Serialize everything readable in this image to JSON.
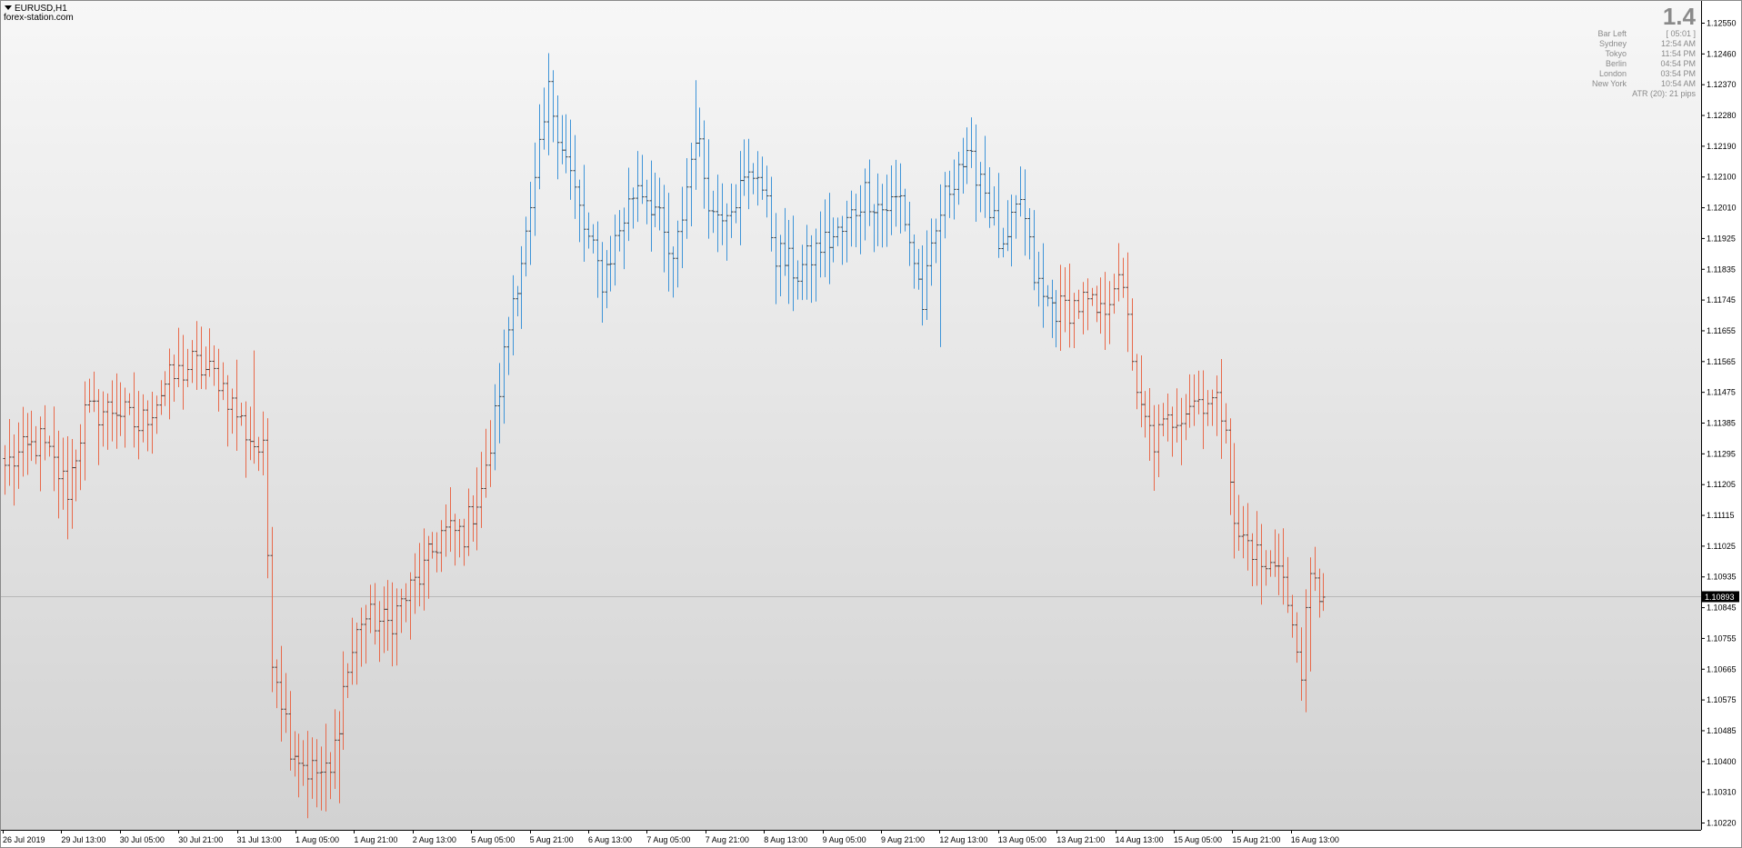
{
  "window": {
    "symbol": "EURUSD,H1",
    "site": "forex-station.com"
  },
  "info_panel": {
    "big_value": "1.4",
    "rows": [
      {
        "label": "Bar Left",
        "value": "[ 05:01 ]"
      },
      {
        "label": "Sydney",
        "value": "12:54 AM"
      },
      {
        "label": "Tokyo",
        "value": "11:54 PM"
      },
      {
        "label": "Berlin",
        "value": "04:54 PM"
      },
      {
        "label": "London",
        "value": "03:54 PM"
      },
      {
        "label": "New York",
        "value": "10:54 AM"
      }
    ],
    "atr": "ATR (20): 21 pips"
  },
  "colors": {
    "background_top": "#f7f7f7",
    "background_bottom": "#d2d2d2",
    "bear_bar": "#e8694a",
    "bull_bar": "#3e94d8",
    "price_line": "#b8b8b8",
    "current_price_box": "#000000",
    "current_price_text": "#ffffff",
    "axis_line": "#000000",
    "info_text": "#8a8a8a"
  },
  "chart_data": {
    "type": "ohlc",
    "title": "EURUSD,H1",
    "xlabel": "",
    "ylabel": "",
    "ylim": [
      1.1022,
      1.1259
    ],
    "grid": false,
    "current_price": "1.10893",
    "y_ticks": [
      "1.12550",
      "1.12460",
      "1.12370",
      "1.12280",
      "1.12190",
      "1.12100",
      "1.12010",
      "1.11925",
      "1.11835",
      "1.11745",
      "1.11655",
      "1.11565",
      "1.11475",
      "1.11385",
      "1.11295",
      "1.11205",
      "1.11115",
      "1.11025",
      "1.10935",
      "1.10845",
      "1.10755",
      "1.10665",
      "1.10575",
      "1.10485",
      "1.10400",
      "1.10310",
      "1.10220"
    ],
    "x_ticks": [
      "26 Jul 2019",
      "29 Jul 13:00",
      "30 Jul 05:00",
      "30 Jul 21:00",
      "31 Jul 13:00",
      "1 Aug 05:00",
      "1 Aug 21:00",
      "2 Aug 13:00",
      "5 Aug 05:00",
      "5 Aug 21:00",
      "6 Aug 13:00",
      "7 Aug 05:00",
      "7 Aug 21:00",
      "8 Aug 13:00",
      "9 Aug 05:00",
      "9 Aug 21:00",
      "12 Aug 13:00",
      "13 Aug 05:00",
      "13 Aug 21:00",
      "14 Aug 13:00",
      "15 Aug 05:00",
      "15 Aug 21:00",
      "16 Aug 13:00"
    ],
    "trend_segments": [
      {
        "trend": "bear",
        "from_bar": 0,
        "to_bar": 109
      },
      {
        "trend": "bull",
        "from_bar": 110,
        "to_bar": 236
      },
      {
        "trend": "bear",
        "from_bar": 237,
        "to_bar": 296
      }
    ],
    "close_path": [
      {
        "bar": 0,
        "close": 1.1128
      },
      {
        "bar": 8,
        "close": 1.1135
      },
      {
        "bar": 14,
        "close": 1.1121
      },
      {
        "bar": 18,
        "close": 1.1143
      },
      {
        "bar": 25,
        "close": 1.1145
      },
      {
        "bar": 30,
        "close": 1.1139
      },
      {
        "bar": 36,
        "close": 1.1152
      },
      {
        "bar": 42,
        "close": 1.1158
      },
      {
        "bar": 48,
        "close": 1.1154
      },
      {
        "bar": 54,
        "close": 1.1138
      },
      {
        "bar": 58,
        "close": 1.1131
      },
      {
        "bar": 60,
        "close": 1.1073
      },
      {
        "bar": 64,
        "close": 1.1046
      },
      {
        "bar": 68,
        "close": 1.1038
      },
      {
        "bar": 73,
        "close": 1.1036
      },
      {
        "bar": 76,
        "close": 1.1062
      },
      {
        "bar": 80,
        "close": 1.1083
      },
      {
        "bar": 86,
        "close": 1.1081
      },
      {
        "bar": 90,
        "close": 1.1089
      },
      {
        "bar": 94,
        "close": 1.1097
      },
      {
        "bar": 98,
        "close": 1.1108
      },
      {
        "bar": 103,
        "close": 1.1108
      },
      {
        "bar": 108,
        "close": 1.1125
      },
      {
        "bar": 110,
        "close": 1.1142
      },
      {
        "bar": 114,
        "close": 1.1178
      },
      {
        "bar": 118,
        "close": 1.1201
      },
      {
        "bar": 122,
        "close": 1.1238
      },
      {
        "bar": 126,
        "close": 1.1219
      },
      {
        "bar": 130,
        "close": 1.1198
      },
      {
        "bar": 134,
        "close": 1.1183
      },
      {
        "bar": 138,
        "close": 1.1198
      },
      {
        "bar": 142,
        "close": 1.1212
      },
      {
        "bar": 146,
        "close": 1.1204
      },
      {
        "bar": 150,
        "close": 1.1186
      },
      {
        "bar": 155,
        "close": 1.1227
      },
      {
        "bar": 159,
        "close": 1.1202
      },
      {
        "bar": 164,
        "close": 1.1208
      },
      {
        "bar": 169,
        "close": 1.1216
      },
      {
        "bar": 173,
        "close": 1.1191
      },
      {
        "bar": 178,
        "close": 1.1185
      },
      {
        "bar": 183,
        "close": 1.1193
      },
      {
        "bar": 188,
        "close": 1.1197
      },
      {
        "bar": 193,
        "close": 1.1209
      },
      {
        "bar": 197,
        "close": 1.1204
      },
      {
        "bar": 201,
        "close": 1.1207
      },
      {
        "bar": 206,
        "close": 1.1176
      },
      {
        "bar": 210,
        "close": 1.1203
      },
      {
        "bar": 214,
        "close": 1.1218
      },
      {
        "bar": 219,
        "close": 1.1215
      },
      {
        "bar": 224,
        "close": 1.1189
      },
      {
        "bar": 228,
        "close": 1.1207
      },
      {
        "bar": 231,
        "close": 1.1184
      },
      {
        "bar": 233,
        "close": 1.1177
      },
      {
        "bar": 237,
        "close": 1.1174
      },
      {
        "bar": 242,
        "close": 1.1176
      },
      {
        "bar": 246,
        "close": 1.1172
      },
      {
        "bar": 249,
        "close": 1.1183
      },
      {
        "bar": 252,
        "close": 1.1175
      },
      {
        "bar": 254,
        "close": 1.1146
      },
      {
        "bar": 258,
        "close": 1.1135
      },
      {
        "bar": 262,
        "close": 1.1142
      },
      {
        "bar": 266,
        "close": 1.1147
      },
      {
        "bar": 270,
        "close": 1.1148
      },
      {
        "bar": 274,
        "close": 1.1143
      },
      {
        "bar": 276,
        "close": 1.1108
      },
      {
        "bar": 280,
        "close": 1.1104
      },
      {
        "bar": 283,
        "close": 1.1096
      },
      {
        "bar": 286,
        "close": 1.1102
      },
      {
        "bar": 289,
        "close": 1.1078
      },
      {
        "bar": 291,
        "close": 1.1069
      },
      {
        "bar": 293,
        "close": 1.1093
      },
      {
        "bar": 296,
        "close": 1.1089
      }
    ],
    "notable_extremes": [
      {
        "bar": 56,
        "high": 1.1162
      },
      {
        "bar": 75,
        "low": 1.1028
      },
      {
        "bar": 122,
        "high": 1.125
      },
      {
        "bar": 155,
        "high": 1.1242
      },
      {
        "bar": 210,
        "low": 1.1163
      },
      {
        "bar": 217,
        "high": 1.1231
      },
      {
        "bar": 252,
        "high": 1.1191
      },
      {
        "bar": 293,
        "low": 1.1067
      }
    ]
  }
}
